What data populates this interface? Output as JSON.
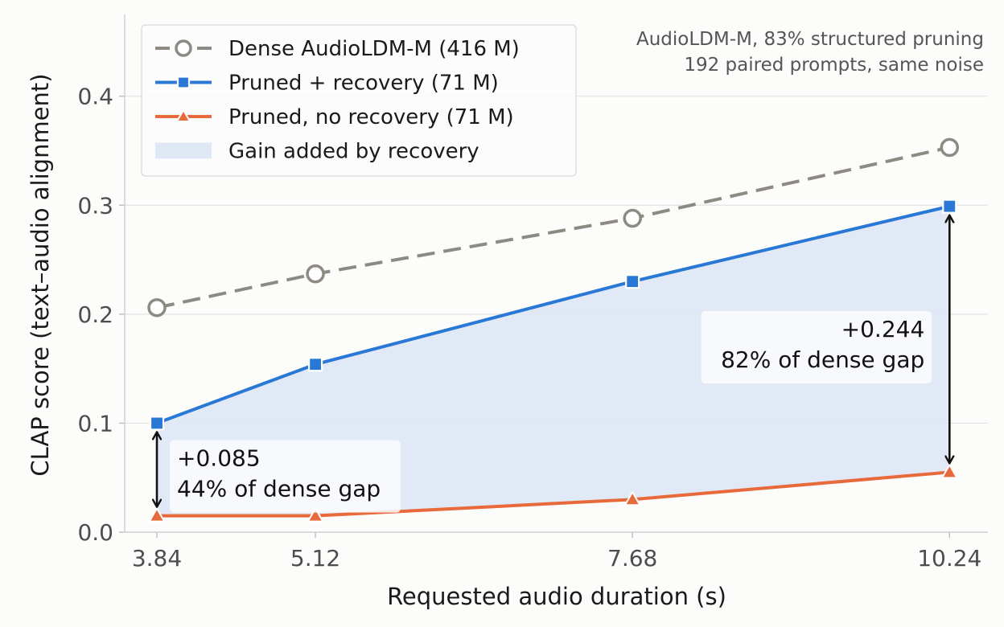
{
  "chart_data": {
    "type": "line",
    "xlabel": "Requested audio duration (s)",
    "ylabel": "CLAP score (text–audio alignment)",
    "x": [
      3.84,
      5.12,
      7.68,
      10.24
    ],
    "x_tick_labels": [
      "3.84",
      "5.12",
      "7.68",
      "10.24"
    ],
    "xlim": [
      3.58,
      10.55
    ],
    "ylim": [
      0.0,
      0.475
    ],
    "y_ticks": [
      0.0,
      0.1,
      0.2,
      0.3,
      0.4
    ],
    "y_tick_labels": [
      "0.0",
      "0.1",
      "0.2",
      "0.3",
      "0.4"
    ],
    "grid": "horizontal",
    "legend_position": "top-left",
    "series": [
      {
        "name": "Dense AudioLDM-M (416 M)",
        "values": [
          0.206,
          0.237,
          0.288,
          0.353
        ],
        "color": "#8c8a82",
        "marker": "circle",
        "line": "dashed"
      },
      {
        "name": "Pruned + recovery (71 M)",
        "values": [
          0.1,
          0.154,
          0.23,
          0.299
        ],
        "color": "#2a78d6",
        "marker": "square",
        "line": "solid"
      },
      {
        "name": "Pruned, no recovery (71 M)",
        "values": [
          0.015,
          0.015,
          0.03,
          0.055
        ],
        "color": "#e8693a",
        "marker": "triangle",
        "line": "solid"
      }
    ],
    "shaded_region": {
      "label": "Gain added by recovery",
      "color": "#dfe8f5",
      "between": [
        "Pruned, no recovery (71 M)",
        "Pruned + recovery (71 M)"
      ]
    },
    "note_lines": [
      "AudioLDM-M, 83% structured pruning",
      "192 paired prompts, same noise"
    ],
    "annotations": [
      {
        "x": 3.84,
        "from": 0.015,
        "to": 0.1,
        "lines": [
          "+0.085",
          "44% of dense gap"
        ],
        "align": "left"
      },
      {
        "x": 10.24,
        "from": 0.055,
        "to": 0.299,
        "lines": [
          "+0.244",
          "82% of dense gap"
        ],
        "align": "right"
      }
    ]
  }
}
